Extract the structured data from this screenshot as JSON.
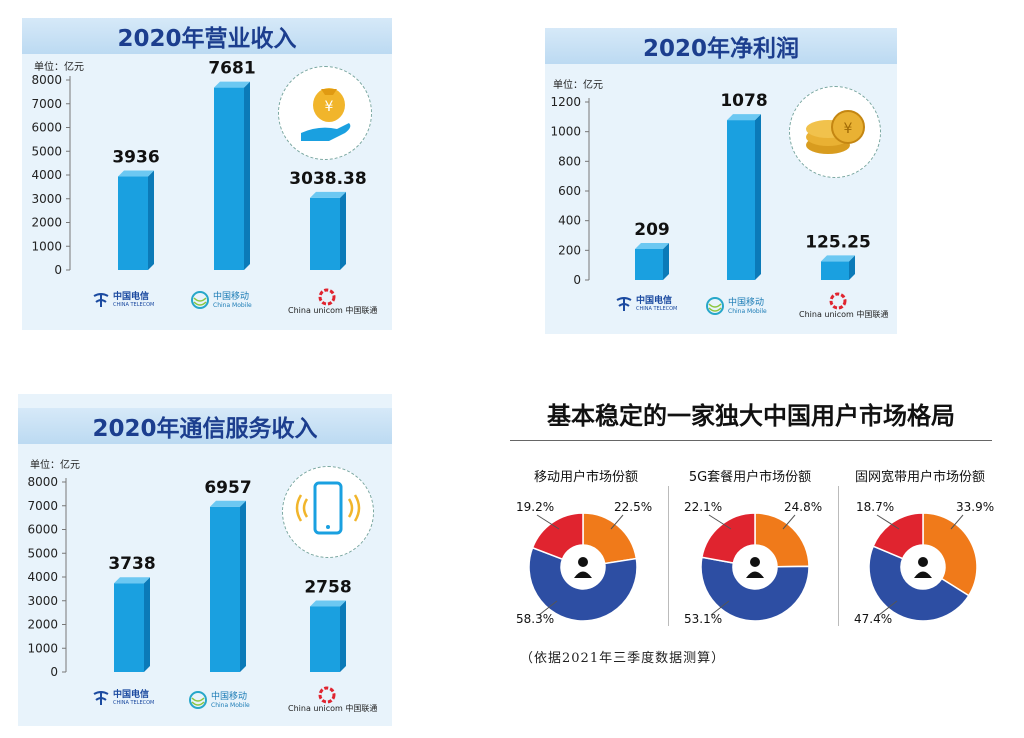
{
  "chart_data": [
    {
      "type": "bar",
      "title": "2020年营业收入",
      "unit": "单位：亿元",
      "categories": [
        "中国电信",
        "中国移动",
        "中国联通"
      ],
      "values": [
        3936,
        7681,
        3038.38
      ],
      "value_labels": [
        "3936",
        "7681",
        "3038.38"
      ],
      "ylim": [
        0,
        8000
      ],
      "yticks": [
        "0",
        "1000",
        "2000",
        "3000",
        "4000",
        "5000",
        "6000",
        "7000",
        "8000"
      ],
      "icon": "money-bag-hand-icon"
    },
    {
      "type": "bar",
      "title": "2020年净利润",
      "unit": "单位：亿元",
      "categories": [
        "中国电信",
        "中国移动",
        "中国联通"
      ],
      "values": [
        209,
        1078,
        125.25
      ],
      "value_labels": [
        "209",
        "1078",
        "125.25"
      ],
      "ylim": [
        0,
        1200
      ],
      "yticks": [
        "0",
        "200",
        "400",
        "600",
        "800",
        "1000",
        "1200"
      ],
      "icon": "coins-icon"
    },
    {
      "type": "bar",
      "title": "2020年通信服务收入",
      "unit": "单位：亿元",
      "categories": [
        "中国电信",
        "中国移动",
        "中国联通"
      ],
      "values": [
        3738,
        6957,
        2758
      ],
      "value_labels": [
        "3738",
        "6957",
        "2758"
      ],
      "ylim": [
        0,
        8000
      ],
      "yticks": [
        "0",
        "1000",
        "2000",
        "3000",
        "4000",
        "5000",
        "6000",
        "7000",
        "8000"
      ],
      "icon": "phone-signal-icon"
    },
    {
      "type": "pie",
      "title": "移动用户市场份额",
      "slices": [
        {
          "name": "中国电信",
          "value": 22.5,
          "label": "22.5%",
          "color": "#f07a1a"
        },
        {
          "name": "中国移动",
          "value": 58.3,
          "label": "58.3%",
          "color": "#2d4ea3"
        },
        {
          "name": "中国联通",
          "value": 19.2,
          "label": "19.2%",
          "color": "#e0242f"
        }
      ]
    },
    {
      "type": "pie",
      "title": "5G套餐用户市场份额",
      "slices": [
        {
          "name": "中国电信",
          "value": 24.8,
          "label": "24.8%",
          "color": "#f07a1a"
        },
        {
          "name": "中国移动",
          "value": 53.1,
          "label": "53.1%",
          "color": "#2d4ea3"
        },
        {
          "name": "中国联通",
          "value": 22.1,
          "label": "22.1%",
          "color": "#e0242f"
        }
      ]
    },
    {
      "type": "pie",
      "title": "固网宽带用户市场份额",
      "slices": [
        {
          "name": "中国电信",
          "value": 33.9,
          "label": "33.9%",
          "color": "#f07a1a"
        },
        {
          "name": "中国移动",
          "value": 47.4,
          "label": "47.4%",
          "color": "#2d4ea3"
        },
        {
          "name": "中国联通",
          "value": 18.7,
          "label": "18.7%",
          "color": "#e0242f"
        }
      ]
    }
  ],
  "logos": {
    "telecom": {
      "cn": "中国电信",
      "en": "CHINA TELECOM"
    },
    "mobile": {
      "cn": "中国移动",
      "en": "China Mobile"
    },
    "unicom": {
      "en": "China unicom",
      "cn": "中国联通"
    }
  },
  "market_title": "基本稳定的一家独大中国用户市场格局",
  "footnote": "（依据2021年三季度数据测算）",
  "colors": {
    "bar": "#1aa0e0",
    "bar_side": "#0b7ab8",
    "bar_top": "#6cc8f2",
    "panel": "#e8f3fb",
    "title": "#1c3e8e"
  }
}
